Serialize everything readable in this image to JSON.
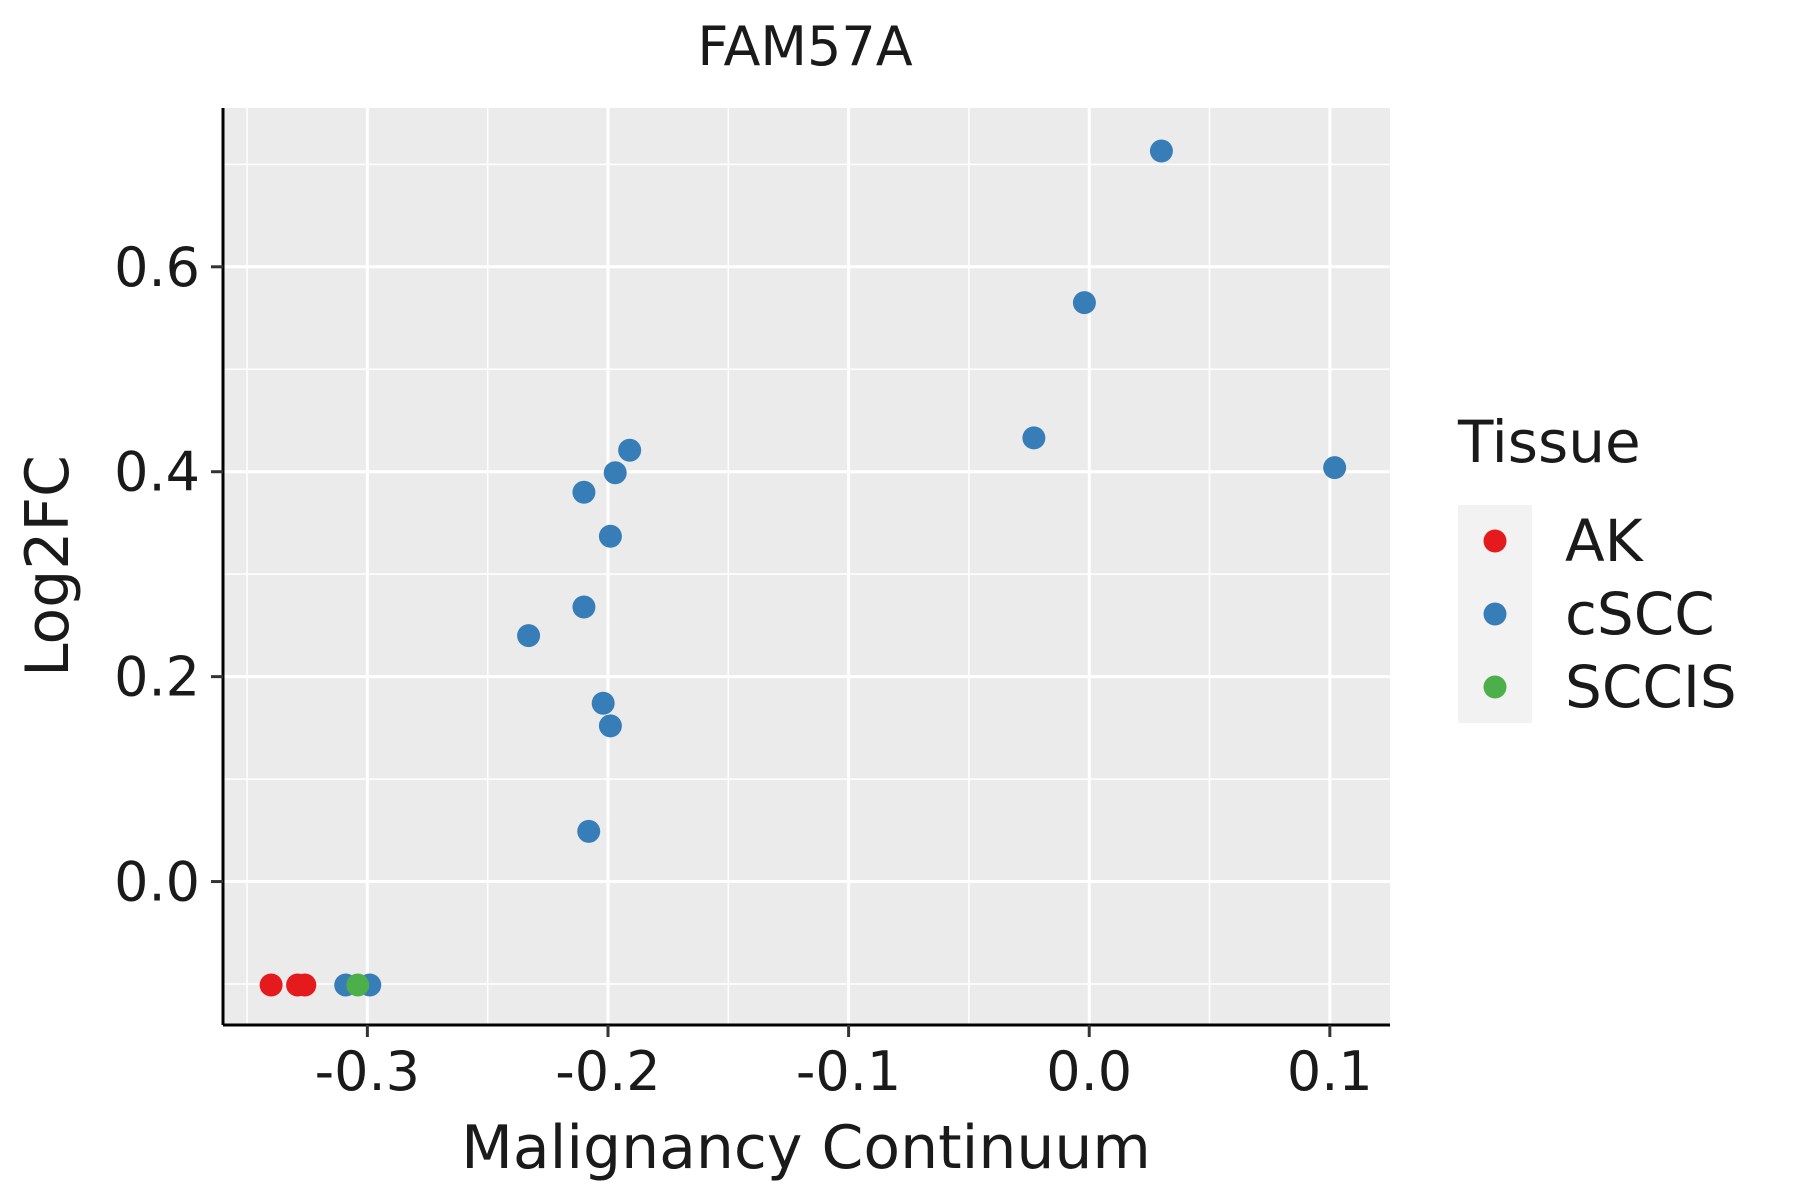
{
  "chart_data": {
    "type": "scatter",
    "title": "FAM57A",
    "xlabel": "Malignancy Continuum",
    "ylabel": "Log2FC",
    "xlim": [
      -0.36,
      0.125
    ],
    "ylim": [
      -0.14,
      0.755
    ],
    "x_ticks": [
      -0.3,
      -0.2,
      -0.1,
      0.0,
      0.1
    ],
    "x_tick_labels": [
      "-0.3",
      "-0.2",
      "-0.1",
      "0.0",
      "0.1"
    ],
    "y_ticks": [
      0.0,
      0.2,
      0.4,
      0.6
    ],
    "y_tick_labels": [
      "0.0",
      "0.2",
      "0.4",
      "0.6"
    ],
    "grid": true,
    "legend": {
      "title": "Tissue",
      "position": "right",
      "entries": [
        {
          "label": "AK",
          "color": "#E41A1C"
        },
        {
          "label": "cSCC",
          "color": "#377EB8"
        },
        {
          "label": "SCCIS",
          "color": "#4DAF4A"
        }
      ]
    },
    "series": [
      {
        "name": "AK",
        "color": "#E41A1C",
        "points": [
          {
            "x": -0.34,
            "y": -0.101
          },
          {
            "x": -0.329,
            "y": -0.101
          },
          {
            "x": -0.326,
            "y": -0.101
          }
        ]
      },
      {
        "name": "cSCC",
        "color": "#377EB8",
        "points": [
          {
            "x": 0.03,
            "y": 0.713
          },
          {
            "x": -0.002,
            "y": 0.565
          },
          {
            "x": -0.023,
            "y": 0.433
          },
          {
            "x": 0.102,
            "y": 0.404
          },
          {
            "x": -0.191,
            "y": 0.421
          },
          {
            "x": -0.197,
            "y": 0.399
          },
          {
            "x": -0.21,
            "y": 0.38
          },
          {
            "x": -0.199,
            "y": 0.337
          },
          {
            "x": -0.21,
            "y": 0.268
          },
          {
            "x": -0.233,
            "y": 0.24
          },
          {
            "x": -0.202,
            "y": 0.174
          },
          {
            "x": -0.199,
            "y": 0.152
          },
          {
            "x": -0.208,
            "y": 0.049
          },
          {
            "x": -0.309,
            "y": -0.101
          },
          {
            "x": -0.299,
            "y": -0.101
          }
        ]
      },
      {
        "name": "SCCIS",
        "color": "#4DAF4A",
        "points": [
          {
            "x": -0.304,
            "y": -0.101
          }
        ]
      }
    ]
  }
}
